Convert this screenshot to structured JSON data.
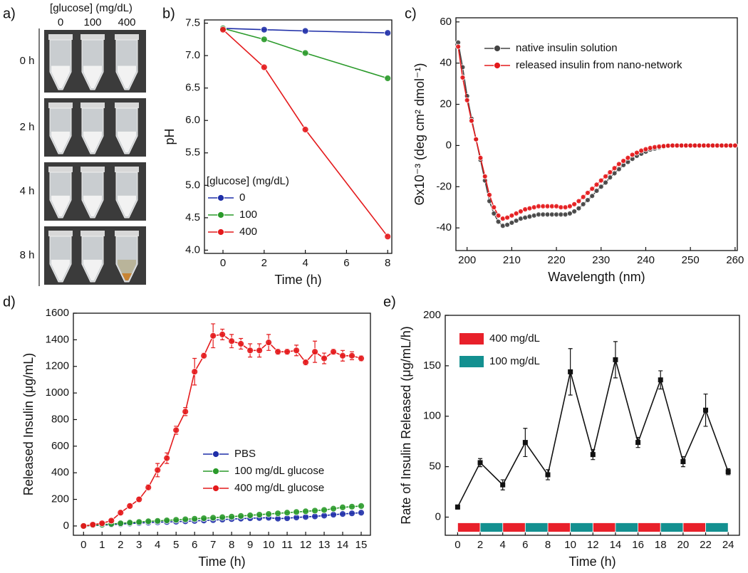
{
  "photo_panel": {
    "label": "a)",
    "header": "[glucose] (mg/dL)",
    "columns": [
      "0",
      "100",
      "400"
    ],
    "rows": [
      "0 h",
      "2 h",
      "4 h",
      "8 h"
    ]
  },
  "chart_data": [
    {
      "type": "line",
      "label": "b)",
      "x_label": "Time (h)",
      "y_label": "pH",
      "legend_title": "[glucose] (mg/dL)",
      "x": [
        0,
        2,
        4,
        8
      ],
      "xlim": [
        -0.9,
        8.2
      ],
      "xticks": [
        0,
        2,
        4,
        6,
        8
      ],
      "ylim": [
        3.95,
        7.55
      ],
      "yticks": [
        {
          "value": 4,
          "label": "4.0"
        },
        4.5,
        {
          "value": 5,
          "label": "5.0"
        },
        5.5,
        {
          "value": 6,
          "label": "6.0"
        },
        6.5,
        {
          "value": 7,
          "label": "7.0"
        },
        7.5
      ],
      "series": [
        {
          "name": "0",
          "color": "#1f2fa8",
          "values": [
            7.42,
            7.4,
            7.38,
            7.35
          ]
        },
        {
          "name": "100",
          "color": "#2a9a2a",
          "values": [
            7.42,
            7.25,
            7.04,
            6.65
          ]
        },
        {
          "name": "400",
          "color": "#e41a1c",
          "values": [
            7.4,
            6.82,
            5.86,
            4.21
          ]
        }
      ]
    },
    {
      "type": "line",
      "label": "c)",
      "x_label": "Wavelength (nm)",
      "y_label": "Θx10⁻³ (deg cm² dmol⁻¹)",
      "x": [
        198,
        199,
        200,
        201,
        202,
        203,
        204,
        205,
        206,
        207,
        208,
        209,
        210,
        211,
        212,
        213,
        214,
        215,
        216,
        217,
        218,
        219,
        220,
        221,
        222,
        223,
        224,
        225,
        226,
        227,
        228,
        229,
        230,
        231,
        232,
        233,
        234,
        235,
        236,
        237,
        238,
        239,
        240,
        241,
        242,
        243,
        244,
        245,
        246,
        247,
        248,
        249,
        250,
        251,
        252,
        253,
        254,
        255,
        256,
        257,
        258,
        259,
        260
      ],
      "xlim": [
        197.5,
        260.5
      ],
      "xticks": [
        200,
        210,
        220,
        230,
        240,
        250,
        260
      ],
      "ylim": [
        -51,
        62
      ],
      "yticks": [
        -40,
        -20,
        0,
        20,
        40,
        60
      ],
      "series": [
        {
          "name": "native insulin solution",
          "color": "#444444",
          "values": [
            50,
            38,
            24,
            13,
            3,
            -7,
            -17,
            -27,
            -33,
            -37,
            -39,
            -38.5,
            -37.5,
            -36.5,
            -35.5,
            -35,
            -34.5,
            -34,
            -33.5,
            -33.5,
            -33.5,
            -33.5,
            -33.5,
            -33.5,
            -33.5,
            -33,
            -32,
            -30.5,
            -28.5,
            -26.5,
            -24.5,
            -22,
            -20,
            -18,
            -15.5,
            -13.5,
            -11.5,
            -9.5,
            -8,
            -6.5,
            -5,
            -4,
            -3,
            -2,
            -1.5,
            -1,
            -0.6,
            -0.3,
            -0.1,
            0,
            0,
            0,
            0,
            0,
            0,
            0,
            0,
            0,
            0,
            0,
            0,
            0,
            0
          ]
        },
        {
          "name": "released insulin from nano-network",
          "color": "#e41a1c",
          "values": [
            48,
            33,
            22,
            12,
            3,
            -6,
            -15,
            -24,
            -30,
            -34,
            -35.5,
            -35,
            -34,
            -33,
            -32,
            -31,
            -30.5,
            -30,
            -29.5,
            -29.5,
            -29.5,
            -29.5,
            -29.5,
            -30,
            -30,
            -29.5,
            -28.5,
            -27,
            -25,
            -23,
            -21,
            -19,
            -17,
            -15,
            -13,
            -11,
            -9,
            -7.5,
            -6,
            -4.5,
            -3.5,
            -2.5,
            -1.8,
            -1.2,
            -0.8,
            -0.5,
            -0.3,
            -0.1,
            0,
            0,
            0,
            0,
            0,
            0,
            0,
            0,
            0,
            0,
            0,
            0,
            0,
            0,
            0
          ]
        }
      ]
    },
    {
      "type": "line",
      "label": "d)",
      "x_label": "Time (h)",
      "y_label": "Released Insulin (μg/mL)",
      "x": [
        0,
        0.5,
        1,
        1.5,
        2,
        2.5,
        3,
        3.5,
        4,
        4.5,
        5,
        5.5,
        6,
        6.5,
        7,
        7.5,
        8,
        8.5,
        9,
        9.5,
        10,
        10.5,
        11,
        11.5,
        12,
        12.5,
        13,
        13.5,
        14,
        14.5,
        15
      ],
      "xlim": [
        -0.55,
        15.5
      ],
      "xticks": [
        0,
        1,
        2,
        3,
        4,
        5,
        6,
        7,
        8,
        9,
        10,
        11,
        12,
        13,
        14,
        15
      ],
      "ylim": [
        -70,
        1600
      ],
      "yticks": [
        0,
        200,
        400,
        600,
        800,
        1000,
        1200,
        1400,
        1600
      ],
      "series": [
        {
          "name": "PBS",
          "color": "#1f2fa8",
          "values": [
            0,
            3,
            6,
            10,
            14,
            18,
            22,
            25,
            28,
            30,
            32,
            35,
            38,
            41,
            44,
            48,
            52,
            55,
            58,
            60,
            62,
            55,
            58,
            64,
            68,
            72,
            78,
            85,
            90,
            95,
            100
          ]
        },
        {
          "name": "100 mg/dL glucose",
          "color": "#2a9a2a",
          "values": [
            0,
            5,
            10,
            15,
            20,
            25,
            30,
            35,
            38,
            42,
            46,
            50,
            54,
            58,
            62,
            66,
            70,
            75,
            80,
            85,
            90,
            95,
            100,
            105,
            110,
            115,
            120,
            130,
            140,
            145,
            150
          ]
        },
        {
          "name": "400 mg/dL glucose",
          "color": "#e41a1c",
          "values": [
            0,
            10,
            20,
            40,
            100,
            150,
            200,
            290,
            420,
            510,
            720,
            860,
            1160,
            1280,
            1430,
            1440,
            1390,
            1370,
            1320,
            1320,
            1380,
            1310,
            1310,
            1320,
            1230,
            1310,
            1260,
            1310,
            1280,
            1280,
            1260
          ],
          "errors": [
            10,
            10,
            10,
            10,
            15,
            15,
            15,
            20,
            50,
            40,
            30,
            30,
            100,
            20,
            90,
            40,
            50,
            40,
            50,
            50,
            60,
            20,
            20,
            40,
            20,
            80,
            40,
            20,
            40,
            30,
            20
          ]
        }
      ]
    },
    {
      "type": "line",
      "label": "e)",
      "x_label": "Time (h)",
      "y_label": "Rate of Insulin Released (μg/mL/h)",
      "x": [
        0,
        2,
        4,
        6,
        8,
        10,
        12,
        14,
        16,
        18,
        20,
        22,
        24
      ],
      "xlim": [
        -1.1,
        25
      ],
      "xticks": [
        0,
        2,
        4,
        6,
        8,
        10,
        12,
        14,
        16,
        18,
        20,
        22,
        24
      ],
      "ylim": [
        -18,
        200
      ],
      "yticks": [
        0,
        50,
        100,
        150,
        200
      ],
      "series": [
        {
          "color": "#111111",
          "values": [
            10,
            54,
            32,
            74,
            42,
            144,
            62,
            156,
            74,
            136,
            55,
            106,
            45
          ],
          "errors": [
            2,
            4,
            5,
            14,
            5,
            23,
            5,
            18,
            5,
            9,
            5,
            16,
            3
          ]
        }
      ],
      "band_width": 2,
      "bands": [
        {
          "name": "400 mg/dL",
          "color": "#e8202a",
          "starts": [
            0,
            4,
            8,
            12,
            16,
            20
          ]
        },
        {
          "name": "100 mg/dL",
          "color": "#139090",
          "starts": [
            2,
            6,
            10,
            14,
            18,
            22
          ]
        }
      ]
    }
  ]
}
